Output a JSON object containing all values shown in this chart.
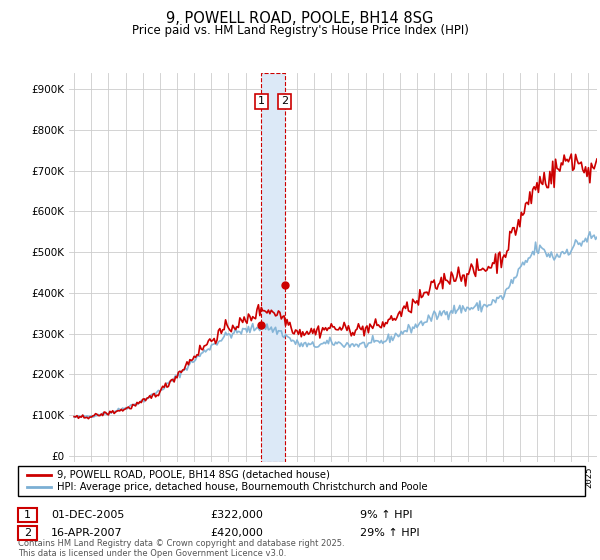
{
  "title": "9, POWELL ROAD, POOLE, BH14 8SG",
  "subtitle": "Price paid vs. HM Land Registry's House Price Index (HPI)",
  "yticks": [
    0,
    100000,
    200000,
    300000,
    400000,
    500000,
    600000,
    700000,
    800000,
    900000
  ],
  "xlim_start": 1994.7,
  "xlim_end": 2025.5,
  "sale1_date": 2005.92,
  "sale1_price": 322000,
  "sale2_date": 2007.29,
  "sale2_price": 420000,
  "sale1_date_str": "01-DEC-2005",
  "sale1_price_str": "£322,000",
  "sale1_hpi": "9% ↑ HPI",
  "sale2_date_str": "16-APR-2007",
  "sale2_price_str": "£420,000",
  "sale2_hpi": "29% ↑ HPI",
  "hpi_color": "#7bafd4",
  "price_color": "#cc0000",
  "marker_color": "#cc0000",
  "sale_box_color": "#cc0000",
  "highlight_fill": "#dce9f7",
  "highlight_edge": "#cc0000",
  "legend_line1": "9, POWELL ROAD, POOLE, BH14 8SG (detached house)",
  "legend_line2": "HPI: Average price, detached house, Bournemouth Christchurch and Poole",
  "footnote": "Contains HM Land Registry data © Crown copyright and database right 2025.\nThis data is licensed under the Open Government Licence v3.0.",
  "background_color": "#ffffff",
  "grid_color": "#cccccc"
}
